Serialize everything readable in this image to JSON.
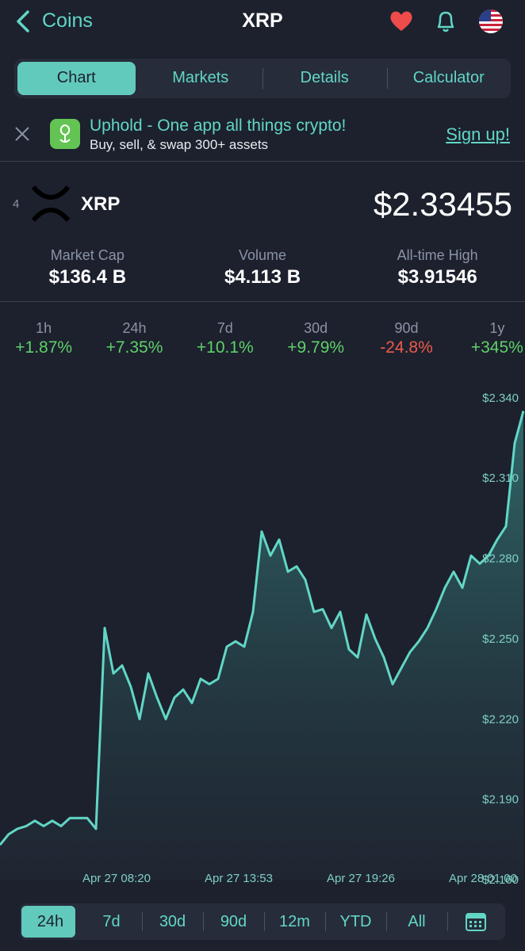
{
  "header": {
    "back": "Coins",
    "title": "XRP"
  },
  "tabs": {
    "items": [
      "Chart",
      "Markets",
      "Details",
      "Calculator"
    ],
    "selected": 0
  },
  "ad": {
    "title": "Uphold - One app all things crypto!",
    "subtitle": "Buy, sell, & swap 300+ assets",
    "cta": "Sign up!"
  },
  "coin": {
    "rank": "4",
    "symbol": "XRP",
    "price": "$2.33455"
  },
  "stats": [
    {
      "label": "Market Cap",
      "value": "$136.4 B"
    },
    {
      "label": "Volume",
      "value": "$4.113 B"
    },
    {
      "label": "All-time High",
      "value": "$3.91546"
    }
  ],
  "changes": [
    {
      "period": "1h",
      "value": "+1.87%",
      "color": "#5fd06a"
    },
    {
      "period": "24h",
      "value": "+7.35%",
      "color": "#5fd06a"
    },
    {
      "period": "7d",
      "value": "+10.1%",
      "color": "#5fd06a"
    },
    {
      "period": "30d",
      "value": "+9.79%",
      "color": "#5fd06a"
    },
    {
      "period": "90d",
      "value": "-24.8%",
      "color": "#ee5a4c"
    },
    {
      "period": "1y",
      "value": "+345%",
      "color": "#5fd06a"
    }
  ],
  "chart_data": {
    "type": "line",
    "color": "#62d6c6",
    "categories": [
      null,
      null,
      null,
      null,
      null,
      null,
      null,
      null,
      null,
      null,
      null,
      null,
      null,
      "Apr 27 08:20",
      null,
      null,
      null,
      null,
      null,
      null,
      null,
      null,
      null,
      null,
      null,
      null,
      null,
      "Apr 27 13:53",
      null,
      null,
      null,
      null,
      null,
      null,
      null,
      null,
      null,
      null,
      null,
      null,
      null,
      "Apr 27 19:26",
      null,
      null,
      null,
      null,
      null,
      null,
      null,
      null,
      null,
      null,
      null,
      null,
      null,
      "Apr 28 01:00",
      null,
      null,
      null,
      null,
      null
    ],
    "values": [
      2.173,
      2.177,
      2.179,
      2.18,
      2.182,
      2.18,
      2.182,
      2.18,
      2.183,
      2.183,
      2.183,
      2.179,
      2.254,
      2.237,
      2.24,
      2.232,
      2.22,
      2.237,
      2.228,
      2.22,
      2.228,
      2.231,
      2.226,
      2.235,
      2.233,
      2.235,
      2.247,
      2.249,
      2.247,
      2.26,
      2.29,
      2.281,
      2.287,
      2.275,
      2.277,
      2.272,
      2.26,
      2.261,
      2.254,
      2.26,
      2.246,
      2.243,
      2.259,
      2.25,
      2.243,
      2.233,
      2.239,
      2.245,
      2.249,
      2.254,
      2.261,
      2.269,
      2.275,
      2.269,
      2.281,
      2.278,
      2.281,
      2.287,
      2.292,
      2.323,
      2.335
    ],
    "ylim": [
      2.16,
      2.35
    ],
    "yticks": [
      {
        "value": 2.16,
        "label": "$2.160"
      },
      {
        "value": 2.19,
        "label": "$2.190"
      },
      {
        "value": 2.22,
        "label": "$2.220"
      },
      {
        "value": 2.25,
        "label": "$2.250"
      },
      {
        "value": 2.28,
        "label": "$2.280"
      },
      {
        "value": 2.31,
        "label": "$2.310"
      },
      {
        "value": 2.34,
        "label": "$2.340"
      }
    ]
  },
  "ranges": {
    "items": [
      "24h",
      "7d",
      "30d",
      "90d",
      "12m",
      "YTD",
      "All"
    ],
    "selected": 0
  }
}
